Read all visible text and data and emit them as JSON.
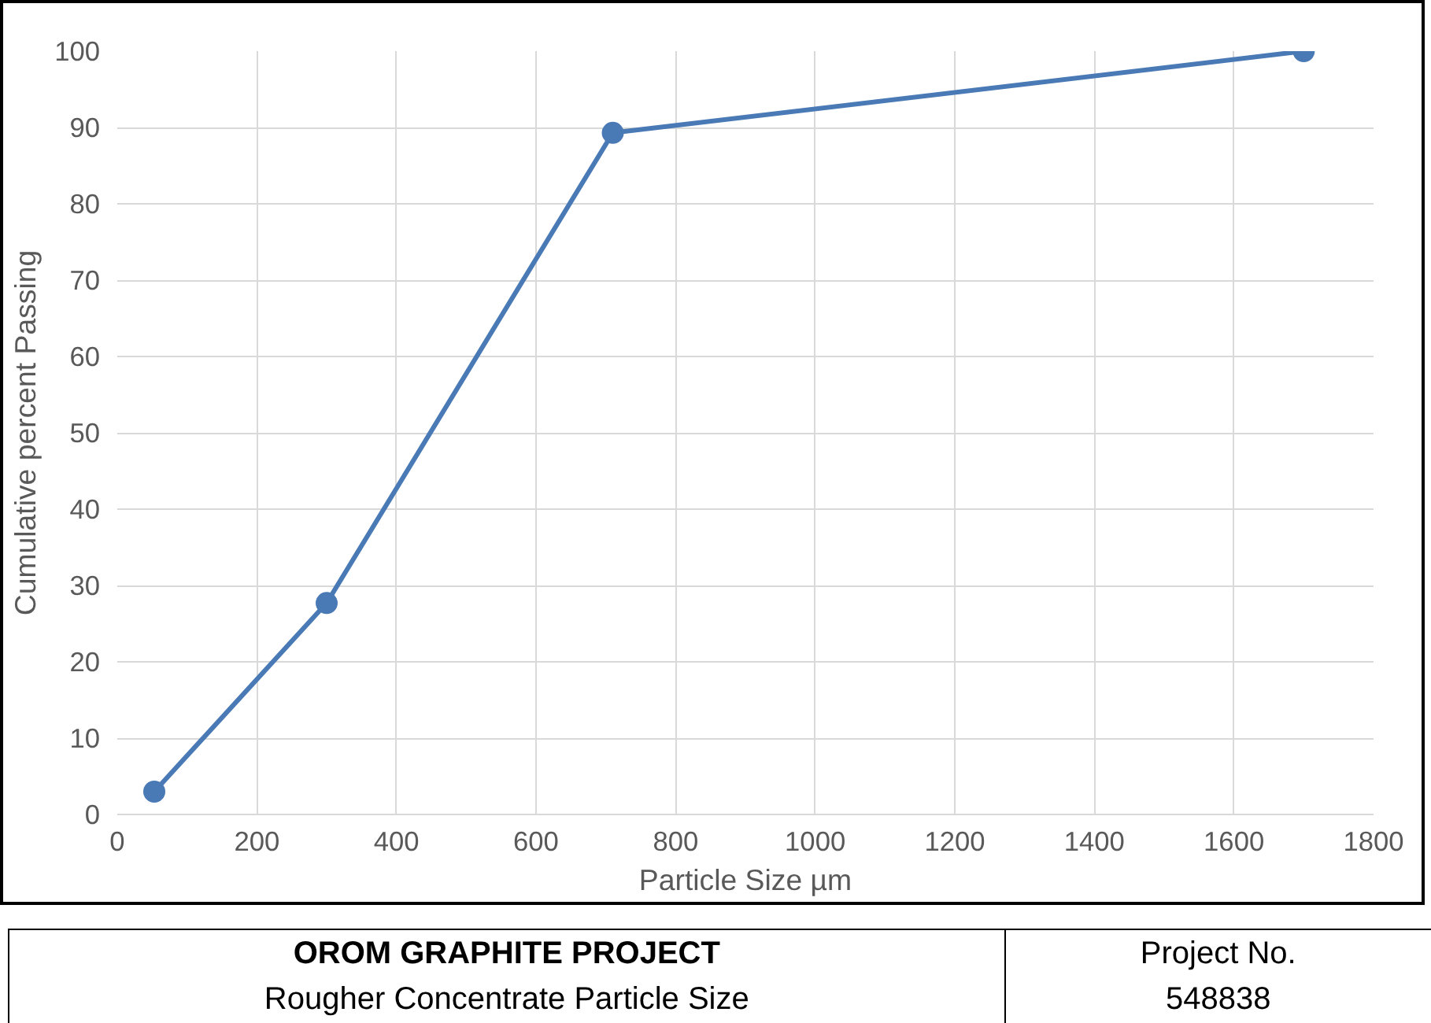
{
  "chart_data": {
    "type": "line",
    "title": "OROM GRAPHITE PROJECT",
    "subtitle": "Rougher Concentrate Particle Size",
    "xlabel": "Particle Size µm",
    "ylabel": "Cumulative percent Passing",
    "x": [
      53,
      300,
      710,
      1700
    ],
    "series": [
      {
        "color": "#4a7ab5",
        "values": [
          3,
          27.7,
          89.3,
          100
        ]
      }
    ],
    "xlim": [
      0,
      1800
    ],
    "xticks": [
      0,
      200,
      400,
      600,
      800,
      1000,
      1200,
      1400,
      1600,
      1800
    ],
    "ylim": [
      0,
      100
    ],
    "yticks": [
      0,
      10,
      20,
      30,
      40,
      50,
      60,
      70,
      80,
      90,
      100
    ],
    "grid": true,
    "marker": "circle",
    "line_style": "solid",
    "annotations": [
      "Project No.\n548838"
    ]
  }
}
